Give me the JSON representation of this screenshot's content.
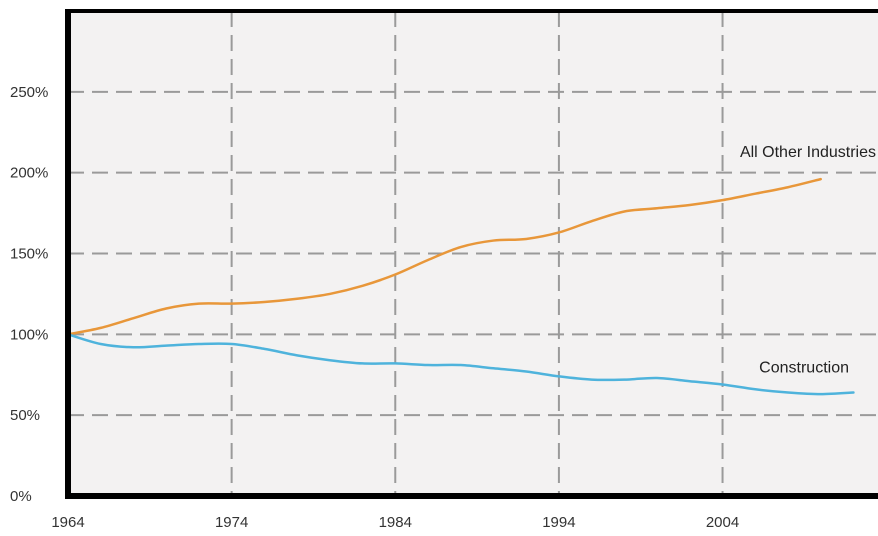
{
  "chart_data": {
    "type": "line",
    "title": "",
    "xlabel": "",
    "ylabel": "",
    "x": [
      1964,
      1966,
      1968,
      1970,
      1972,
      1974,
      1976,
      1978,
      1980,
      1982,
      1984,
      1986,
      1988,
      1990,
      1992,
      1994,
      1996,
      1998,
      2000,
      2002,
      2004,
      2006,
      2008,
      2010,
      2012
    ],
    "series": [
      {
        "name": "All Other Industries",
        "color": "#e8973a",
        "values": [
          100,
          104,
          110,
          116,
          119,
          119,
          120,
          122,
          125,
          130,
          137,
          146,
          154,
          158,
          159,
          163,
          170,
          176,
          178,
          180,
          183,
          187,
          191,
          196,
          null
        ]
      },
      {
        "name": "Construction",
        "color": "#4eb3dc",
        "values": [
          100,
          94,
          92,
          93,
          94,
          94,
          91,
          87,
          84,
          82,
          82,
          81,
          81,
          79,
          77,
          74,
          72,
          72,
          73,
          71,
          69,
          66,
          64,
          63,
          64
        ]
      }
    ],
    "xticks": [
      "1964",
      "1974",
      "1984",
      "1994",
      "2004"
    ],
    "xtick_values": [
      1964,
      1974,
      1984,
      1994,
      2004
    ],
    "yticks": [
      "0%",
      "50%",
      "100%",
      "150%",
      "200%",
      "250%"
    ],
    "ytick_values": [
      0,
      50,
      100,
      150,
      200,
      250
    ],
    "xlim": [
      1964,
      2013.5
    ],
    "ylim": [
      0,
      300
    ],
    "grid": true,
    "colors": {
      "plot_background": "#f3f2f2",
      "axis": "#000000",
      "grid": "#9a9a9a"
    }
  }
}
